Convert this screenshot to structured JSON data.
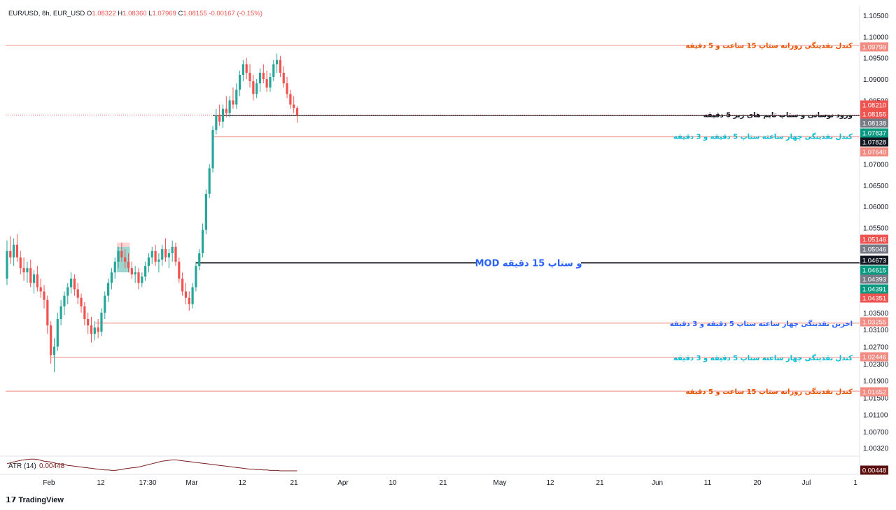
{
  "header": {
    "symbol": "EUR/USD, 8h, EUR_USD",
    "ohlc": [
      {
        "k": "O",
        "v": "1.08322"
      },
      {
        "k": "H",
        "v": "1.08360"
      },
      {
        "k": "L",
        "v": "1.07969"
      },
      {
        "k": "C",
        "v": "1.08155"
      },
      {
        "k": "",
        "v": "-0.00167 (-0.15%)"
      }
    ]
  },
  "footer": {
    "logo_text": "TradingView"
  },
  "colors": {
    "up": "#26a69a",
    "down": "#ef5350",
    "grid": "#f0f3fa",
    "level_line": "#f28b82",
    "black_line": "#131722",
    "orange_text": "#e65100",
    "blue_text": "#2962ff",
    "cyan_text": "#00bcd4",
    "atr_line": "#7b1c1c"
  },
  "chart_data": {
    "type": "candlestick",
    "symbol": "EUR/USD",
    "timeframe": "8h",
    "ylim": [
      1.0032,
      1.105
    ],
    "y_ticks": [
      "1.10500",
      "1.10000",
      "1.09500",
      "1.09000",
      "1.08500",
      "1.07000",
      "1.06500",
      "1.06000",
      "1.05500",
      "1.03500",
      "1.03100",
      "1.02700",
      "1.02300",
      "1.01900",
      "1.01500",
      "1.01100",
      "1.00700",
      "1.00320"
    ],
    "x_ticks": [
      "Feb",
      "12",
      "17:30",
      "Mar",
      "12",
      "21",
      "Apr",
      "10",
      "21",
      "May",
      "12",
      "21",
      "Jun",
      "11",
      "20",
      "Jul",
      "1"
    ],
    "candles": [
      {
        "o": 1.043,
        "h": 1.052,
        "l": 1.0415,
        "c": 1.0495
      },
      {
        "o": 1.0495,
        "h": 1.053,
        "l": 1.0465,
        "c": 1.048
      },
      {
        "o": 1.048,
        "h": 1.0525,
        "l": 1.046,
        "c": 1.051
      },
      {
        "o": 1.051,
        "h": 1.0535,
        "l": 1.047,
        "c": 1.048
      },
      {
        "o": 1.048,
        "h": 1.0495,
        "l": 1.044,
        "c": 1.0455
      },
      {
        "o": 1.0455,
        "h": 1.048,
        "l": 1.0425,
        "c": 1.0445
      },
      {
        "o": 1.0445,
        "h": 1.047,
        "l": 1.042,
        "c": 1.0455
      },
      {
        "o": 1.0455,
        "h": 1.0475,
        "l": 1.041,
        "c": 1.042
      },
      {
        "o": 1.042,
        "h": 1.045,
        "l": 1.0395,
        "c": 1.044
      },
      {
        "o": 1.044,
        "h": 1.046,
        "l": 1.04,
        "c": 1.041
      },
      {
        "o": 1.041,
        "h": 1.043,
        "l": 1.0385,
        "c": 1.04
      },
      {
        "o": 1.04,
        "h": 1.0415,
        "l": 1.036,
        "c": 1.038
      },
      {
        "o": 1.038,
        "h": 1.039,
        "l": 1.03,
        "c": 1.032
      },
      {
        "o": 1.032,
        "h": 1.033,
        "l": 1.023,
        "c": 1.025
      },
      {
        "o": 1.025,
        "h": 1.029,
        "l": 1.021,
        "c": 1.027
      },
      {
        "o": 1.027,
        "h": 1.035,
        "l": 1.026,
        "c": 1.0335
      },
      {
        "o": 1.0335,
        "h": 1.038,
        "l": 1.032,
        "c": 1.0365
      },
      {
        "o": 1.0365,
        "h": 1.04,
        "l": 1.0345,
        "c": 1.039
      },
      {
        "o": 1.039,
        "h": 1.042,
        "l": 1.037,
        "c": 1.041
      },
      {
        "o": 1.041,
        "h": 1.0445,
        "l": 1.0395,
        "c": 1.043
      },
      {
        "o": 1.043,
        "h": 1.044,
        "l": 1.039,
        "c": 1.0405
      },
      {
        "o": 1.0405,
        "h": 1.042,
        "l": 1.037,
        "c": 1.0385
      },
      {
        "o": 1.0385,
        "h": 1.0395,
        "l": 1.035,
        "c": 1.0365
      },
      {
        "o": 1.0365,
        "h": 1.0375,
        "l": 1.032,
        "c": 1.0335
      },
      {
        "o": 1.0335,
        "h": 1.035,
        "l": 1.03,
        "c": 1.032
      },
      {
        "o": 1.032,
        "h": 1.034,
        "l": 1.028,
        "c": 1.03
      },
      {
        "o": 1.03,
        "h": 1.033,
        "l": 1.0285,
        "c": 1.0315
      },
      {
        "o": 1.0315,
        "h": 1.0335,
        "l": 1.029,
        "c": 1.0305
      },
      {
        "o": 1.0305,
        "h": 1.036,
        "l": 1.0295,
        "c": 1.035
      },
      {
        "o": 1.035,
        "h": 1.04,
        "l": 1.0335,
        "c": 1.039
      },
      {
        "o": 1.039,
        "h": 1.043,
        "l": 1.0375,
        "c": 1.042
      },
      {
        "o": 1.042,
        "h": 1.0455,
        "l": 1.0405,
        "c": 1.0445
      },
      {
        "o": 1.0445,
        "h": 1.048,
        "l": 1.043,
        "c": 1.047
      },
      {
        "o": 1.047,
        "h": 1.0505,
        "l": 1.0455,
        "c": 1.0495
      },
      {
        "o": 1.0495,
        "h": 1.0515,
        "l": 1.047,
        "c": 1.048
      },
      {
        "o": 1.048,
        "h": 1.05,
        "l": 1.0455,
        "c": 1.047
      },
      {
        "o": 1.047,
        "h": 1.049,
        "l": 1.0445,
        "c": 1.0455
      },
      {
        "o": 1.0455,
        "h": 1.047,
        "l": 1.043,
        "c": 1.044
      },
      {
        "o": 1.044,
        "h": 1.046,
        "l": 1.042,
        "c": 1.0445
      },
      {
        "o": 1.0445,
        "h": 1.0455,
        "l": 1.0405,
        "c": 1.042
      },
      {
        "o": 1.042,
        "h": 1.0445,
        "l": 1.041,
        "c": 1.0435
      },
      {
        "o": 1.0435,
        "h": 1.047,
        "l": 1.0425,
        "c": 1.046
      },
      {
        "o": 1.046,
        "h": 1.049,
        "l": 1.0445,
        "c": 1.048
      },
      {
        "o": 1.048,
        "h": 1.0505,
        "l": 1.0465,
        "c": 1.0495
      },
      {
        "o": 1.0495,
        "h": 1.051,
        "l": 1.046,
        "c": 1.047
      },
      {
        "o": 1.047,
        "h": 1.049,
        "l": 1.0445,
        "c": 1.0475
      },
      {
        "o": 1.0475,
        "h": 1.051,
        "l": 1.046,
        "c": 1.05
      },
      {
        "o": 1.05,
        "h": 1.0525,
        "l": 1.047,
        "c": 1.048
      },
      {
        "o": 1.048,
        "h": 1.05,
        "l": 1.0455,
        "c": 1.049
      },
      {
        "o": 1.049,
        "h": 1.052,
        "l": 1.047,
        "c": 1.0505
      },
      {
        "o": 1.0505,
        "h": 1.0515,
        "l": 1.046,
        "c": 1.047
      },
      {
        "o": 1.047,
        "h": 1.048,
        "l": 1.042,
        "c": 1.043
      },
      {
        "o": 1.043,
        "h": 1.0445,
        "l": 1.039,
        "c": 1.04
      },
      {
        "o": 1.04,
        "h": 1.042,
        "l": 1.037,
        "c": 1.0385
      },
      {
        "o": 1.0385,
        "h": 1.04,
        "l": 1.0355,
        "c": 1.037
      },
      {
        "o": 1.037,
        "h": 1.042,
        "l": 1.036,
        "c": 1.041
      },
      {
        "o": 1.041,
        "h": 1.047,
        "l": 1.04,
        "c": 1.046
      },
      {
        "o": 1.046,
        "h": 1.05,
        "l": 1.045,
        "c": 1.049
      },
      {
        "o": 1.049,
        "h": 1.056,
        "l": 1.048,
        "c": 1.0545
      },
      {
        "o": 1.0545,
        "h": 1.064,
        "l": 1.0535,
        "c": 1.063
      },
      {
        "o": 1.063,
        "h": 1.07,
        "l": 1.062,
        "c": 1.069
      },
      {
        "o": 1.069,
        "h": 1.079,
        "l": 1.068,
        "c": 1.078
      },
      {
        "o": 1.078,
        "h": 1.083,
        "l": 1.077,
        "c": 1.0815
      },
      {
        "o": 1.0815,
        "h": 1.084,
        "l": 1.079,
        "c": 1.08
      },
      {
        "o": 1.08,
        "h": 1.084,
        "l": 1.0785,
        "c": 1.083
      },
      {
        "o": 1.083,
        "h": 1.086,
        "l": 1.081,
        "c": 1.082
      },
      {
        "o": 1.082,
        "h": 1.086,
        "l": 1.081,
        "c": 1.085
      },
      {
        "o": 1.085,
        "h": 1.088,
        "l": 1.083,
        "c": 1.084
      },
      {
        "o": 1.084,
        "h": 1.089,
        "l": 1.083,
        "c": 1.0875
      },
      {
        "o": 1.0875,
        "h": 1.092,
        "l": 1.086,
        "c": 1.091
      },
      {
        "o": 1.091,
        "h": 1.0945,
        "l": 1.0895,
        "c": 1.0935
      },
      {
        "o": 1.0935,
        "h": 1.095,
        "l": 1.09,
        "c": 1.0915
      },
      {
        "o": 1.0915,
        "h": 1.0935,
        "l": 1.088,
        "c": 1.0895
      },
      {
        "o": 1.0895,
        "h": 1.091,
        "l": 1.085,
        "c": 1.0865
      },
      {
        "o": 1.0865,
        "h": 1.09,
        "l": 1.0855,
        "c": 1.089
      },
      {
        "o": 1.089,
        "h": 1.0925,
        "l": 1.087,
        "c": 1.0915
      },
      {
        "o": 1.0915,
        "h": 1.0935,
        "l": 1.089,
        "c": 1.09
      },
      {
        "o": 1.09,
        "h": 1.092,
        "l": 1.087,
        "c": 1.088
      },
      {
        "o": 1.088,
        "h": 1.0915,
        "l": 1.087,
        "c": 1.0905
      },
      {
        "o": 1.0905,
        "h": 1.0945,
        "l": 1.0895,
        "c": 1.0935
      },
      {
        "o": 1.0935,
        "h": 1.096,
        "l": 1.0915,
        "c": 1.0945
      },
      {
        "o": 1.0945,
        "h": 1.0955,
        "l": 1.0905,
        "c": 1.0915
      },
      {
        "o": 1.0915,
        "h": 1.093,
        "l": 1.088,
        "c": 1.089
      },
      {
        "o": 1.089,
        "h": 1.0905,
        "l": 1.0855,
        "c": 1.0865
      },
      {
        "o": 1.0865,
        "h": 1.0875,
        "l": 1.083,
        "c": 1.084
      },
      {
        "o": 1.084,
        "h": 1.086,
        "l": 1.082,
        "c": 1.0832
      },
      {
        "o": 1.0832,
        "h": 1.0836,
        "l": 1.0797,
        "c": 1.0816
      }
    ],
    "price_labels": [
      {
        "label": "1.09799",
        "value": 1.09799,
        "bg": "#f28b82",
        "fg": "#ffffff"
      },
      {
        "label": "1.08210",
        "value": 1.0821,
        "bg": "#ef5350",
        "fg": "#ffffff"
      },
      {
        "label": "1.08155",
        "value": 1.08155,
        "bg": "#ef5350",
        "fg": "#ffffff"
      },
      {
        "label": "1.08138",
        "value": 1.08138,
        "bg": "#787b86",
        "fg": "#ffffff"
      },
      {
        "label": "1.07837",
        "value": 1.07837,
        "bg": "#089981",
        "fg": "#ffffff"
      },
      {
        "label": "1.07828",
        "value": 1.07828,
        "bg": "#131722",
        "fg": "#ffffff"
      },
      {
        "label": "1.07640",
        "value": 1.0764,
        "bg": "#f28b82",
        "fg": "#ffffff"
      },
      {
        "label": "1.05146",
        "value": 1.05146,
        "bg": "#ef5350",
        "fg": "#ffffff"
      },
      {
        "label": "1.05046",
        "value": 1.05046,
        "bg": "#787b86",
        "fg": "#ffffff"
      },
      {
        "label": "1.04673",
        "value": 1.04673,
        "bg": "#131722",
        "fg": "#ffffff"
      },
      {
        "label": "1.04615",
        "value": 1.04615,
        "bg": "#089981",
        "fg": "#ffffff"
      },
      {
        "label": "1.04393",
        "value": 1.04393,
        "bg": "#787b86",
        "fg": "#ffffff"
      },
      {
        "label": "1.04391",
        "value": 1.04391,
        "bg": "#089981",
        "fg": "#ffffff"
      },
      {
        "label": "1.04351",
        "value": 1.04351,
        "bg": "#ef5350",
        "fg": "#ffffff"
      },
      {
        "label": "1.03255",
        "value": 1.03255,
        "bg": "#f28b82",
        "fg": "#ffffff"
      },
      {
        "label": "1.02446",
        "value": 1.02446,
        "bg": "#f28b82",
        "fg": "#ffffff"
      },
      {
        "label": "1.01652",
        "value": 1.01652,
        "bg": "#f28b82",
        "fg": "#ffffff"
      }
    ],
    "horizontal_levels": [
      {
        "value": 1.09799,
        "color": "#f28b82",
        "from_candle": -1,
        "label": "کندل نقدینگی روزانه ستاپ 15 ساعت و 5 دقیقه",
        "label_color": "#e65100"
      },
      {
        "value": 1.08138,
        "color": "#131722",
        "from_candle": 61,
        "label": "ورود نوسانی  و  ستاپ تایم های زیر 5 دقیقه",
        "label_color": "#131722"
      },
      {
        "value": 1.0764,
        "color": "#f28b82",
        "from_candle": 61,
        "label": "کندل نقدینگی چهار ساعته ستاپ 5 دقیقه و 3 دقیقه",
        "label_color": "#00bcd4"
      },
      {
        "value": 1.04673,
        "color": "#131722",
        "from_candle": 56,
        "label": "MOD و ستاپ 15 دقیقه",
        "label_color": "#2962ff",
        "label_mid": true
      },
      {
        "value": 1.03255,
        "color": "#f28b82",
        "from_candle": 26,
        "label": "اخرین نقدینگی چهار ساعته ستاپ 5 دقیقه و 3 دقیقه",
        "label_color": "#2962ff"
      },
      {
        "value": 1.02446,
        "color": "#f28b82",
        "from_candle": 13,
        "label": "کندل نقدینگی چهار ساعته ستاپ 5 دقیقه و 3 دقیقه",
        "label_color": "#00bcd4"
      },
      {
        "value": 1.01652,
        "color": "#f28b82",
        "from_candle": -1,
        "label": "کندل نقدینگی روزانه ستاپ 15 ساعت و 5 دقیقه",
        "label_color": "#e65100"
      }
    ],
    "last_price": 1.08155,
    "zone": {
      "from_candle": 33,
      "to_candle": 36,
      "top": 1.0515,
      "mid": 1.0505,
      "bottom": 1.0445
    },
    "atr": {
      "label": "ATR (14)",
      "value_text": "0.00448",
      "values": [
        0.0062,
        0.0064,
        0.0066,
        0.0068,
        0.007,
        0.0071,
        0.0072,
        0.0073,
        0.0073,
        0.0072,
        0.007,
        0.0068,
        0.0067,
        0.0066,
        0.0064,
        0.0062,
        0.0061,
        0.006,
        0.0058,
        0.0057,
        0.0056,
        0.0055,
        0.0054,
        0.0053,
        0.0052,
        0.0051,
        0.005,
        0.0049,
        0.0048,
        0.0047,
        0.0047,
        0.0046,
        0.0046,
        0.0047,
        0.0048,
        0.005,
        0.0051,
        0.0052,
        0.0053,
        0.0054,
        0.0056,
        0.0058,
        0.006,
        0.0062,
        0.0064,
        0.0066,
        0.0068,
        0.0069,
        0.007,
        0.0071,
        0.0071,
        0.007,
        0.0069,
        0.0068,
        0.0067,
        0.0066,
        0.0065,
        0.0064,
        0.0063,
        0.0062,
        0.0061,
        0.006,
        0.0059,
        0.0058,
        0.0057,
        0.0056,
        0.0055,
        0.0054,
        0.0053,
        0.0052,
        0.0051,
        0.005,
        0.0049,
        0.0049,
        0.0048,
        0.0048,
        0.0047,
        0.0047,
        0.0046,
        0.0046,
        0.0046,
        0.0045,
        0.0045,
        0.0045,
        0.0045,
        0.0045,
        0.0045
      ],
      "ylim": [
        0.004,
        0.008
      ]
    }
  }
}
